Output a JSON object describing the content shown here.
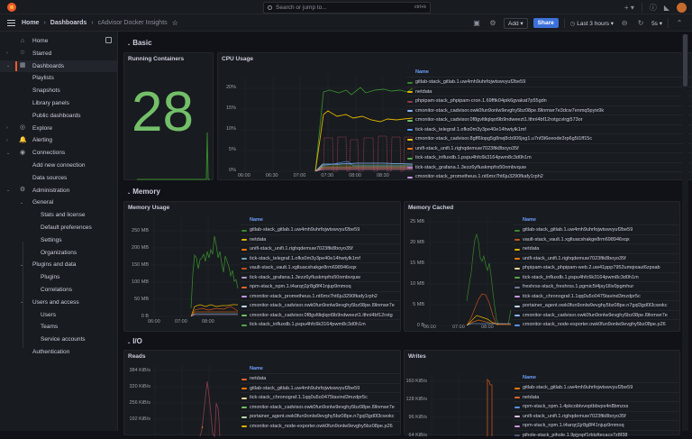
{
  "topbar": {
    "search_placeholder": "Search or jump to...",
    "search_shortcut": "ctrl+k",
    "new_icon": "+ ▾",
    "help_icon": "?",
    "news_icon": "rss-icon"
  },
  "breadcrumb": {
    "home": "Home",
    "dashboards": "Dashboards",
    "current": "cAdvisor Docker Insights",
    "sep": "›"
  },
  "toolbar": {
    "add_label": "Add ▾",
    "share_label": "Share",
    "time_range": "Last 3 hours ▾",
    "refresh_interval": "5s ▾"
  },
  "sidebar": {
    "items": [
      {
        "label": "Home",
        "level": 0,
        "icon": "⌂"
      },
      {
        "label": "Starred",
        "level": 0,
        "icon": "☆",
        "chev": "›"
      },
      {
        "label": "Dashboards",
        "level": 0,
        "icon": "▦",
        "chev": "⌄",
        "active": true
      },
      {
        "label": "Playlists",
        "level": 1
      },
      {
        "label": "Snapshots",
        "level": 1
      },
      {
        "label": "Library panels",
        "level": 1
      },
      {
        "label": "Public dashboards",
        "level": 1
      },
      {
        "label": "Explore",
        "level": 0,
        "icon": "◎",
        "chev": "›"
      },
      {
        "label": "Alerting",
        "level": 0,
        "icon": "🔔",
        "chev": "›"
      },
      {
        "label": "Connections",
        "level": 0,
        "icon": "◉",
        "chev": "⌄"
      },
      {
        "label": "Add new connection",
        "level": 1
      },
      {
        "label": "Data sources",
        "level": 1
      },
      {
        "label": "Administration",
        "level": 0,
        "icon": "⚙",
        "chev": "⌄"
      },
      {
        "label": "General",
        "level": 1,
        "chev": "⌄"
      },
      {
        "label": "Stats and license",
        "level": 2
      },
      {
        "label": "Default preferences",
        "level": 2
      },
      {
        "label": "Settings",
        "level": 2
      },
      {
        "label": "Organizations",
        "level": 2
      },
      {
        "label": "Plugins and data",
        "level": 1,
        "chev": "⌄"
      },
      {
        "label": "Plugins",
        "level": 2
      },
      {
        "label": "Correlations",
        "level": 2
      },
      {
        "label": "Users and access",
        "level": 1,
        "chev": "⌄"
      },
      {
        "label": "Users",
        "level": 2
      },
      {
        "label": "Teams",
        "level": 2
      },
      {
        "label": "Service accounts",
        "level": 2
      },
      {
        "label": "Authentication",
        "level": 1
      }
    ]
  },
  "rows": {
    "basic": "Basic",
    "memory": "Memory",
    "io": "I/O"
  },
  "panels": {
    "running": {
      "title": "Running Containers",
      "value": "28"
    },
    "cpu": {
      "title": "CPU Usage",
      "yticks": [
        "20%",
        "15%",
        "10%",
        "5%",
        "0%"
      ],
      "xticks": [
        "06:00",
        "06:30",
        "07:00",
        "07:30",
        "08:00",
        "08:30"
      ],
      "legend_head": {
        "name": "Name",
        "max": "Max",
        "min": "Mi"
      },
      "legend": [
        {
          "name": "gitlab-stack_gitlab.1.uw4mh9uhrfojwtswvyuf2be59",
          "max": "21.6%",
          "min": "1",
          "color": "#37872d"
        },
        {
          "name": "netdata",
          "max": "13.9%",
          "min": "1",
          "color": "#e0b400"
        },
        {
          "name": "phpipam-stack_phpipam-cron.1.69fftk04pik6gvakat7p55gdn",
          "max": "8.35%",
          "min": "4",
          "color": "#8f3b4c"
        },
        {
          "name": "cmonitor-stack_cadvisor.owk0fun9onlw9evghy5bz08pe.l9lnmwr7e3dcw7enmq5pyix9k",
          "max": "1.83%",
          "min": "1.",
          "color": "#8ab8ff"
        },
        {
          "name": "cmonitor-stack_cadvisor.0f8gvltliqlqot9b9ndweezt1.lthnl4bf12rotgcvlrgj573or",
          "max": "1.70%",
          "min": "1.",
          "color": "#73bf69"
        },
        {
          "name": "tick-stack_telegraf.1.ofks0m3y3pe40e14hwtylk1mf",
          "max": "1.67%",
          "min": "1.",
          "color": "#5794f2"
        },
        {
          "name": "cmonitor-stack_cadvisor.8gff6lopg5g8rwj8cb906jsg1.u7nf3t6eeode3rp6g5t1ff15c",
          "max": "1.21%",
          "min": "1",
          "color": "#f2cc0c"
        },
        {
          "name": "unifi-stack_unifi.1.righqdemuw7023ftk8boyo35f",
          "max": "0.903%",
          "min": "0.7",
          "color": "#ff780a"
        },
        {
          "name": "tick-stack_influxdb.1.pspu4hfc6k3164pwm8c3d0h1m",
          "max": "1.44%",
          "min": "0.7",
          "color": "#56a64b"
        },
        {
          "name": "tick-stack_grafana.1.3ezz6yfluskmpfrs50nmbvquw",
          "max": "2.26%",
          "min": "0.5",
          "color": "#b877d9"
        },
        {
          "name": "cmonitor-stack_prometheus.1.nt6mx7ht6ju3290fkafy1rph2",
          "max": "1.45%",
          "min": "0.5",
          "color": "#ca95e5"
        }
      ]
    },
    "mem_usage": {
      "title": "Memory Usage",
      "yticks": [
        "250 MB",
        "200 MB",
        "150 MB",
        "100 MB",
        "50 MB",
        "0 B"
      ],
      "xticks": [
        "06:00",
        "07:00",
        "08:00"
      ],
      "legend_head": "Name",
      "legend": [
        {
          "name": "gitlab-stack_gitlab.1.uw4mh9uhrfojwtswvyuf2be59",
          "color": "#37872d"
        },
        {
          "name": "netdata",
          "color": "#e0b400"
        },
        {
          "name": "unifi-stack_unifi.1.righqdemuw7023ftk8boyo35f",
          "color": "#ff780a"
        },
        {
          "name": "tick-stack_telegraf.1.ofks0m3y3pe40e14hwtylk1mf",
          "color": "#6ea6c6"
        },
        {
          "name": "vault-stack_vault.1.xgltuacshakge8rm698946xqx",
          "color": "#c4511e"
        },
        {
          "name": "tick-stack_grafana.1.3ezz6yfluskmpfrs50nmbvquw",
          "color": "#b09ad1"
        },
        {
          "name": "npm-stack_npm.1.t4arqrj1jr8g8f41njup9mmoq",
          "color": "#e0662c"
        },
        {
          "name": "cmonitor-stack_prometheus.1.nt6mx7ht6ju3290fkafy1rph2",
          "color": "#ca95e5"
        },
        {
          "name": "cmonitor-stack_cadvisor.owk0fun9onlw9evghy5bz08pe.l9lnmwr7e",
          "color": "#c0d8ff"
        },
        {
          "name": "cmonitor-stack_cadvisor.0f8gvltliqlqot9b9ndweezt1.lthnl4bf12rotg",
          "color": "#73bf69"
        },
        {
          "name": "tick-stack_influxdb.1.pspu4hfc6k3164pwm8c3d0h1m",
          "color": "#56a64b"
        }
      ]
    },
    "mem_cached": {
      "title": "Memory Cached",
      "yticks": [
        "25 MB",
        "20 MB",
        "15 MB",
        "10 MB",
        "5 MB",
        "0 B"
      ],
      "xticks": [
        "06:00",
        "07:00",
        "08:00"
      ],
      "legend_head": "Name",
      "legend": [
        {
          "name": "gitlab-stack_gitlab.1.uw4mh9uhrfojwtswvyuf2be59",
          "color": "#37872d"
        },
        {
          "name": "vault-stack_vault.1.xgltuacshakge8rm698946xqx",
          "color": "#c4511e"
        },
        {
          "name": "netdata",
          "color": "#e0b400"
        },
        {
          "name": "unifi-stack_unifi.1.righqdemuw7023ftk8boyo35f",
          "color": "#ff780a"
        },
        {
          "name": "phpipam-stack_phpipam-web.2.uw41ppp7952umqixaut6zpsab",
          "color": "#f4d598"
        },
        {
          "name": "tick-stack_influxdb.1.pspu4hfc6k3164pwm8c3d0h1m",
          "color": "#56a64b"
        },
        {
          "name": "freshrss-stack_freshrss.1.pgmic5t4jsy1lliv0pgmhur",
          "color": "#6d7a9c"
        },
        {
          "name": "tick-stack_chronograf.1.1qq0u5o0475tavind3mzdpr5c",
          "color": "#ca95e5"
        },
        {
          "name": "portainer_agent.owk0fun9onlw9evghy5bz08pe.n7gql3gd0l3cwokc",
          "color": "#c0d8ff"
        },
        {
          "name": "cmonitor-stack_cadvisor.owk0fun9onlw9evghy5bz08pe.l9lnmwr7e",
          "color": "#8ab8ff"
        },
        {
          "name": "cmonitor-stack_node-exporter.owk0fun9onlw9evghy5bz08pe.p26",
          "color": "#5794f2"
        }
      ]
    },
    "reads": {
      "title": "Reads",
      "yticks": [
        "384 KiB/s",
        "320 KiB/s",
        "256 KiB/s",
        "192 KiB/s"
      ],
      "legend_head": "Name",
      "legend": [
        {
          "name": "netdata",
          "color": "#e0662c"
        },
        {
          "name": "gitlab-stack_gitlab.1.uw4mh9uhrfojwtswvyuf2be59",
          "color": "#ff780a"
        },
        {
          "name": "tick-stack_chronograf.1.1qq0u5o0475tavind3mzdpr5c",
          "color": "#f4d598"
        },
        {
          "name": "cmonitor-stack_cadvisor.owk0fun9onlw9evghy5bz08pe.l9lnmwr7e",
          "color": "#73bf69"
        },
        {
          "name": "portainer_agent.owk0fun9onlw9evghy5bz08pe.n7gql3gd0l3cwokc",
          "color": "#b8d9b0"
        },
        {
          "name": "cmonitor-stack_node-exporter.owk0fun9onlw9evghy5bz08pe.p26",
          "color": "#e0b400"
        }
      ]
    },
    "writes": {
      "title": "Writes",
      "yticks": [
        "160 KiB/s",
        "128 KiB/s",
        "96 KiB/s",
        "64 KiB/s"
      ],
      "legend_head": "Name",
      "legend": [
        {
          "name": "gitlab-stack_gitlab.1.uw4mh9uhrfojwtswvyuf2be59",
          "color": "#ff780a"
        },
        {
          "name": "netdata",
          "color": "#e0662c"
        },
        {
          "name": "npm-stack_npm.1.4pkcobtvvoptbbvpx4n8bmzss",
          "color": "#5794f2"
        },
        {
          "name": "unifi-stack_unifi.1.righqdemuw7023ftk8boyo35f",
          "color": "#e5c0f0"
        },
        {
          "name": "npm-stack_npm.1.t4arqrj1jr8g8f41njup9mmoq",
          "color": "#ca95e5"
        },
        {
          "name": "pihole-stack_pihole.1.9pjyspf1rbtzltecacs7z8f38",
          "color": "#4d5a78"
        }
      ]
    }
  }
}
